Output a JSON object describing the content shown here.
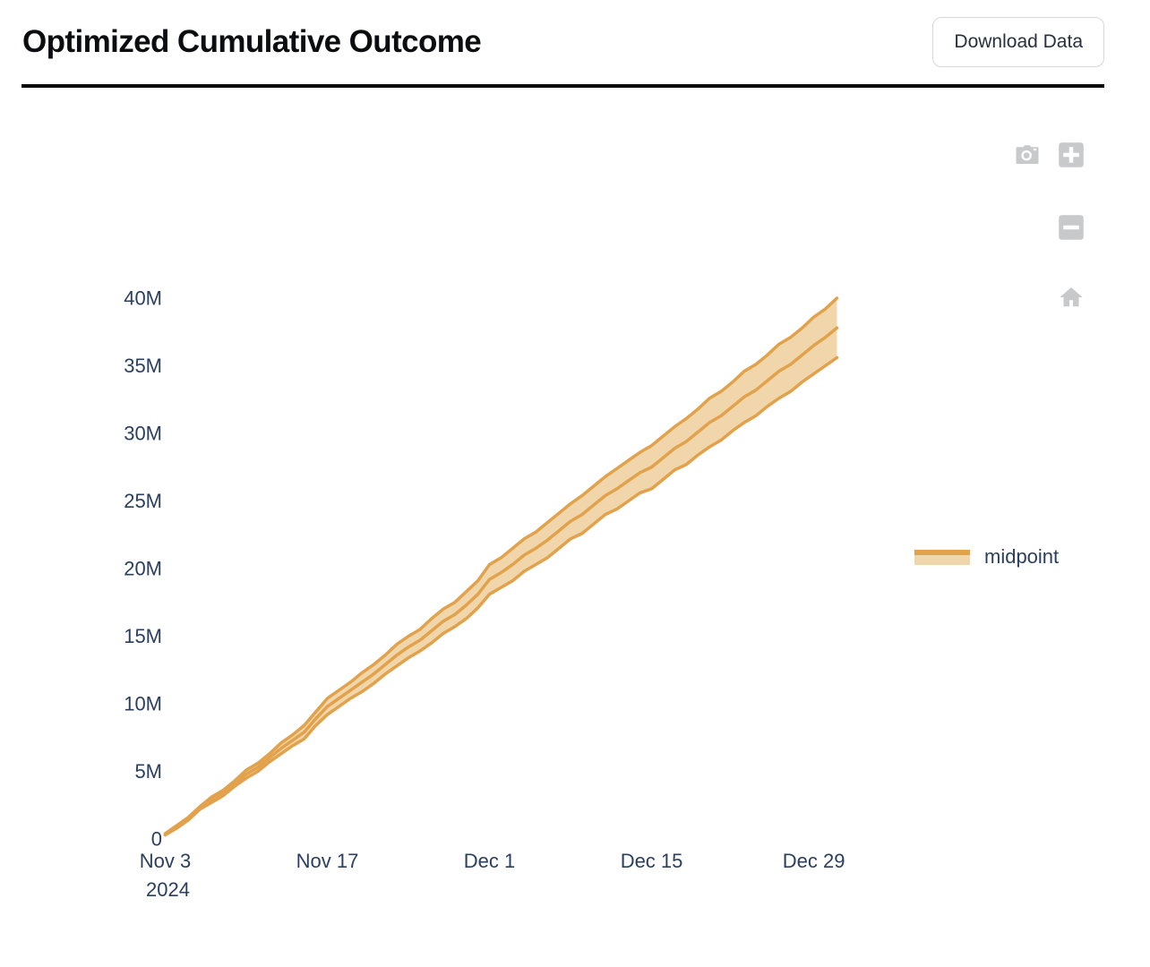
{
  "page": {
    "title": "Optimized Cumulative Outcome",
    "download_button_label": "Download Data"
  },
  "modebar": {
    "icons": [
      "camera",
      "zoom-in",
      "zoom-out",
      "reset-home"
    ],
    "icon_color": "#c8c9cb"
  },
  "legend": {
    "label": "midpoint",
    "position": "right"
  },
  "chart_data": {
    "type": "line",
    "title": "Optimized Cumulative Outcome",
    "xlabel": "",
    "ylabel": "",
    "unit": "M",
    "ylim": [
      0,
      41.5
    ],
    "grid": false,
    "legend_position": "right",
    "band_fill": true,
    "colors": {
      "line": "#e2a24c",
      "fill": "#f1d6ab",
      "tick_text": "#2a3f5f"
    },
    "x": [
      "2024-11-03",
      "2024-11-04",
      "2024-11-05",
      "2024-11-06",
      "2024-11-07",
      "2024-11-08",
      "2024-11-09",
      "2024-11-10",
      "2024-11-11",
      "2024-11-12",
      "2024-11-13",
      "2024-11-14",
      "2024-11-15",
      "2024-11-16",
      "2024-11-17",
      "2024-11-18",
      "2024-11-19",
      "2024-11-20",
      "2024-11-21",
      "2024-11-22",
      "2024-11-23",
      "2024-11-24",
      "2024-11-25",
      "2024-11-26",
      "2024-11-27",
      "2024-11-28",
      "2024-11-29",
      "2024-11-30",
      "2024-12-01",
      "2024-12-02",
      "2024-12-03",
      "2024-12-04",
      "2024-12-05",
      "2024-12-06",
      "2024-12-07",
      "2024-12-08",
      "2024-12-09",
      "2024-12-10",
      "2024-12-11",
      "2024-12-12",
      "2024-12-13",
      "2024-12-14",
      "2024-12-15",
      "2024-12-16",
      "2024-12-17",
      "2024-12-18",
      "2024-12-19",
      "2024-12-20",
      "2024-12-21",
      "2024-12-22",
      "2024-12-23",
      "2024-12-24",
      "2024-12-25",
      "2024-12-26",
      "2024-12-27",
      "2024-12-28",
      "2024-12-29",
      "2024-12-30",
      "2024-12-31"
    ],
    "series": [
      {
        "name": "upper",
        "values": [
          0.4,
          1.0,
          1.6,
          2.4,
          3.1,
          3.6,
          4.3,
          5.1,
          5.6,
          6.3,
          7.1,
          7.7,
          8.4,
          9.4,
          10.4,
          11.0,
          11.6,
          12.3,
          12.9,
          13.6,
          14.4,
          15.0,
          15.5,
          16.3,
          17.0,
          17.5,
          18.3,
          19.1,
          20.3,
          20.8,
          21.5,
          22.2,
          22.7,
          23.4,
          24.1,
          24.8,
          25.4,
          26.1,
          26.8,
          27.4,
          28.0,
          28.6,
          29.1,
          29.8,
          30.5,
          31.1,
          31.8,
          32.6,
          33.1,
          33.8,
          34.6,
          35.1,
          35.8,
          36.6,
          37.1,
          37.8,
          38.6,
          39.2,
          40.0
        ]
      },
      {
        "name": "midpoint",
        "values": [
          0.3,
          0.9,
          1.5,
          2.3,
          2.9,
          3.4,
          4.1,
          4.8,
          5.3,
          6.0,
          6.7,
          7.3,
          7.9,
          8.9,
          9.8,
          10.4,
          11.0,
          11.6,
          12.2,
          12.9,
          13.6,
          14.2,
          14.7,
          15.4,
          16.1,
          16.6,
          17.3,
          18.1,
          19.2,
          19.7,
          20.3,
          21.0,
          21.5,
          22.1,
          22.8,
          23.5,
          24.0,
          24.7,
          25.4,
          25.9,
          26.5,
          27.1,
          27.5,
          28.2,
          28.9,
          29.4,
          30.1,
          30.8,
          31.3,
          32.0,
          32.7,
          33.2,
          33.9,
          34.6,
          35.1,
          35.8,
          36.5,
          37.1,
          37.8
        ]
      },
      {
        "name": "lower",
        "values": [
          0.3,
          0.8,
          1.4,
          2.2,
          2.7,
          3.2,
          3.9,
          4.5,
          5.0,
          5.7,
          6.3,
          6.9,
          7.4,
          8.4,
          9.2,
          9.8,
          10.4,
          10.9,
          11.5,
          12.2,
          12.8,
          13.4,
          13.9,
          14.5,
          15.2,
          15.7,
          16.3,
          17.1,
          18.1,
          18.6,
          19.1,
          19.8,
          20.3,
          20.8,
          21.5,
          22.2,
          22.6,
          23.3,
          24.0,
          24.4,
          25.0,
          25.6,
          25.9,
          26.6,
          27.3,
          27.7,
          28.4,
          29.0,
          29.5,
          30.2,
          30.8,
          31.3,
          32.0,
          32.6,
          33.1,
          33.8,
          34.4,
          35.0,
          35.6
        ]
      }
    ],
    "y_ticks": [
      {
        "value": 0,
        "label": "0"
      },
      {
        "value": 5,
        "label": "5M"
      },
      {
        "value": 10,
        "label": "10M"
      },
      {
        "value": 15,
        "label": "15M"
      },
      {
        "value": 20,
        "label": "20M"
      },
      {
        "value": 25,
        "label": "25M"
      },
      {
        "value": 30,
        "label": "30M"
      },
      {
        "value": 35,
        "label": "35M"
      },
      {
        "value": 40,
        "label": "40M"
      }
    ],
    "x_ticks": [
      {
        "day": 0,
        "label": "Nov 3",
        "sublabel": "2024"
      },
      {
        "day": 14,
        "label": "Nov 17"
      },
      {
        "day": 28,
        "label": "Dec 1"
      },
      {
        "day": 42,
        "label": "Dec 15"
      },
      {
        "day": 56,
        "label": "Dec 29"
      }
    ]
  }
}
